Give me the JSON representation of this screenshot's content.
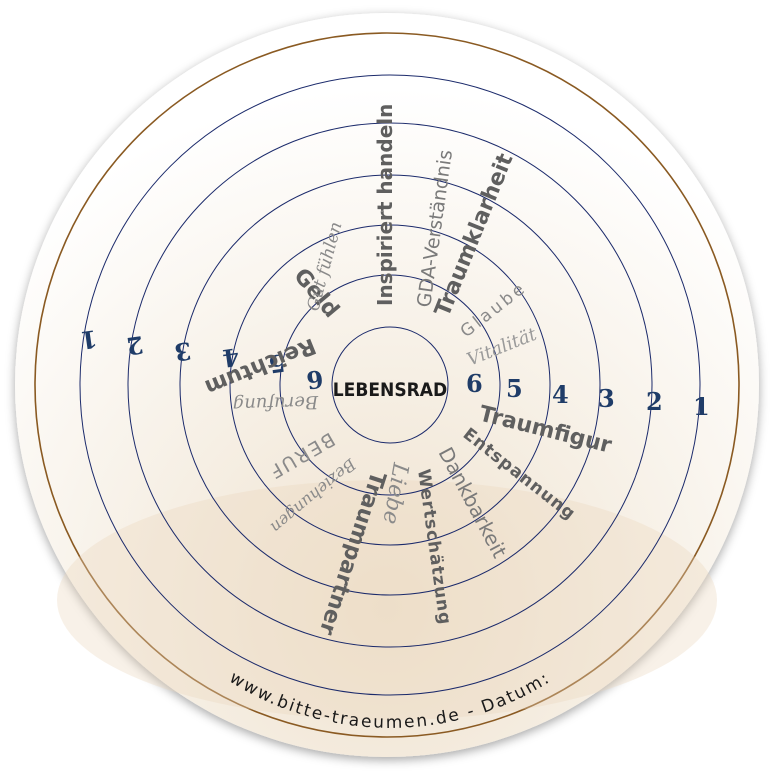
{
  "center_label": "LEBENSRAD",
  "footer": "www.bitte-traeumen.de - Datum:",
  "scale_right": [
    "6",
    "5",
    "4",
    "3",
    "2",
    "1"
  ],
  "scale_left": [
    "6",
    "5",
    "4",
    "3",
    "2",
    "1"
  ],
  "words": {
    "reichtum": "Reichtum",
    "geld": "Geld",
    "gut_fuehlen": "Gut fühlen",
    "inspiriert": "Inspiriert handeln",
    "gda": "GDA-Verständnis",
    "traumklarheit": "Traumklarheit",
    "glaube": "Glaube",
    "vitalitaet": "Vitalität",
    "traumfigur": "Traumfigur",
    "entspannung": "Entspannung",
    "dankbarkeit": "Dankbarkeit",
    "wertschaetzung": "Wertschätzung",
    "liebe": "Liebe",
    "traumpartner": "Traumpartner",
    "beziehungen": "Beziehungen",
    "beruf": "BERUF",
    "berufung": "Berufung"
  },
  "colors": {
    "ring_line": "#1b2a6b",
    "outer_border": "#8a5a22",
    "numbers": "#1f3c68",
    "words_dark": "#5f5f5f",
    "words_light": "#9a9a9a"
  }
}
